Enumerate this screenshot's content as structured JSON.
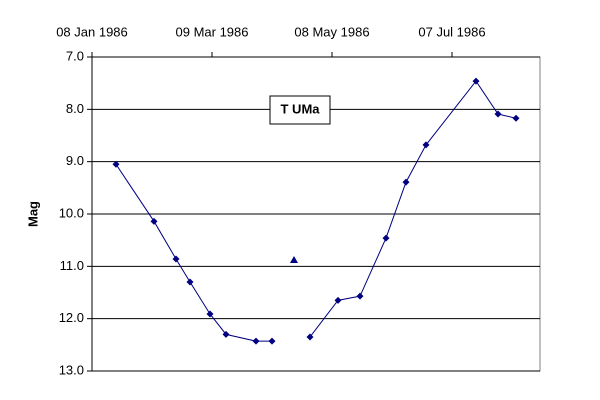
{
  "chart_data": {
    "type": "line",
    "annotation": "T UMa",
    "y_label": "Mag",
    "x": [
      "1986-01-20",
      "1986-02-08",
      "1986-02-19",
      "1986-02-26",
      "1986-03-08",
      "1986-03-16",
      "1986-03-31",
      "1986-04-08",
      "1986-04-19",
      "1986-04-27",
      "1986-05-11",
      "1986-05-22",
      "1986-06-04",
      "1986-06-14",
      "1986-06-24",
      "1986-07-19",
      "1986-07-30",
      "1986-08-08"
    ],
    "series": [
      {
        "color": "#000080",
        "marker": "diamond",
        "line": true,
        "values": [
          9.05,
          10.14,
          10.86,
          11.3,
          11.91,
          12.3,
          12.43,
          12.43,
          null,
          12.35,
          11.65,
          11.57,
          10.46,
          9.39,
          8.68,
          7.46,
          8.09,
          8.17
        ]
      },
      {
        "color": "#000080",
        "marker": "triangle",
        "line": false,
        "values": [
          null,
          null,
          null,
          null,
          null,
          null,
          null,
          null,
          10.88,
          null,
          null,
          null,
          null,
          null,
          null,
          null,
          null,
          null
        ]
      }
    ],
    "xlim": [
      "1986-01-08",
      "1986-08-20"
    ],
    "xticks": [
      {
        "value": "1986-01-08",
        "label": "08 Jan 1986"
      },
      {
        "value": "1986-03-09",
        "label": "09 Mar 1986"
      },
      {
        "value": "1986-05-08",
        "label": "08 May 1986"
      },
      {
        "value": "1986-07-07",
        "label": "07 Jul 1986"
      }
    ],
    "ylim": [
      13,
      7
    ],
    "yticks": [
      {
        "value": 7,
        "label": "7.0"
      },
      {
        "value": 8,
        "label": "8.0"
      },
      {
        "value": 9,
        "label": "9.0"
      },
      {
        "value": 10,
        "label": "10.0"
      },
      {
        "value": 11,
        "label": "11.0"
      },
      {
        "value": 12,
        "label": "12.0"
      },
      {
        "value": 13,
        "label": "13.0"
      }
    ],
    "grid": true
  }
}
